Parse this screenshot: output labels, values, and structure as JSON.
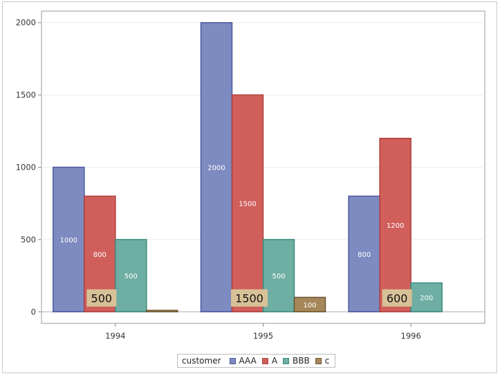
{
  "chart_data": {
    "type": "bar",
    "categories": [
      "1994",
      "1995",
      "1996"
    ],
    "series": [
      {
        "name": "AAA",
        "color": "#7e8bc1",
        "stroke": "#4a56a0",
        "values": [
          1000,
          2000,
          800
        ],
        "labels": [
          "1000",
          "2000",
          "800"
        ]
      },
      {
        "name": "A",
        "color": "#d05f5c",
        "stroke": "#b0403d",
        "values": [
          800,
          1500,
          1200
        ],
        "labels": [
          "800",
          "1500",
          "1200"
        ]
      },
      {
        "name": "BBB",
        "color": "#6eaea3",
        "stroke": "#3b8a7e",
        "values": [
          500,
          500,
          200
        ],
        "labels": [
          "500",
          "500",
          "200"
        ]
      },
      {
        "name": "c",
        "color": "#a6875a",
        "stroke": "#6e5530",
        "values": [
          10,
          100,
          null
        ],
        "labels": [
          "",
          "100",
          ""
        ]
      }
    ],
    "annotations": [
      {
        "category": "1994",
        "text": "500"
      },
      {
        "category": "1995",
        "text": "1500"
      },
      {
        "category": "1996",
        "text": "600"
      }
    ],
    "yticks": [
      "0",
      "500",
      "1000",
      "1500",
      "2000"
    ],
    "ylim": [
      -80,
      2080
    ],
    "grid": true,
    "legend": {
      "title": "customer",
      "position": "bottom"
    }
  }
}
